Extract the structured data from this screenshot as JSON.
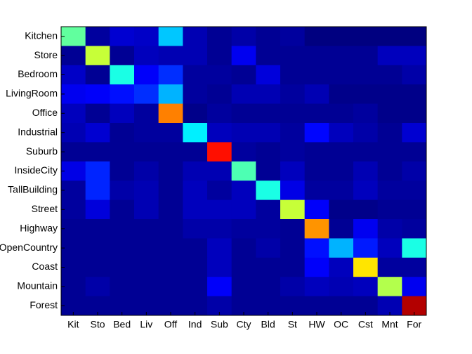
{
  "chart_data": {
    "type": "heatmap",
    "colormap": "jet",
    "zlim": [
      0,
      1
    ],
    "x_categories": [
      "Kit",
      "Sto",
      "Bed",
      "Liv",
      "Off",
      "Ind",
      "Sub",
      "Cty",
      "Bld",
      "St",
      "HW",
      "OC",
      "Cst",
      "Mnt",
      "For"
    ],
    "y_categories": [
      "Kitchen",
      "Store",
      "Bedroom",
      "LivingRoom",
      "Office",
      "Industrial",
      "Suburb",
      "InsideCity",
      "TallBuilding",
      "Street",
      "Highway",
      "OpenCountry",
      "Coast",
      "Mountain",
      "Forest"
    ],
    "values": [
      [
        0.47,
        0.03,
        0.08,
        0.07,
        0.32,
        0.05,
        0.02,
        0.04,
        0.02,
        0.03,
        0,
        0,
        0,
        0,
        0
      ],
      [
        0.02,
        0.57,
        0.02,
        0.06,
        0.05,
        0.05,
        0.02,
        0.11,
        0.02,
        0.02,
        0.02,
        0.02,
        0.02,
        0.06,
        0.06
      ],
      [
        0.07,
        0.02,
        0.4,
        0.12,
        0.17,
        0.03,
        0.03,
        0.02,
        0.09,
        0.02,
        0.02,
        0.02,
        0.02,
        0.02,
        0.04
      ],
      [
        0.11,
        0.12,
        0.14,
        0.17,
        0.3,
        0.03,
        0.02,
        0.05,
        0.05,
        0.03,
        0.05,
        0.01,
        0.01,
        0.01,
        0.01
      ],
      [
        0.06,
        0.02,
        0.06,
        0.03,
        0.75,
        0.01,
        0.03,
        0.02,
        0.02,
        0.02,
        0.02,
        0.02,
        0.03,
        0.01,
        0.01
      ],
      [
        0.05,
        0.08,
        0.02,
        0.03,
        0.03,
        0.36,
        0.06,
        0.05,
        0.05,
        0.03,
        0.13,
        0.06,
        0.04,
        0.02,
        0.08
      ],
      [
        0.02,
        0.02,
        0.02,
        0.02,
        0.02,
        0.02,
        0.86,
        0.03,
        0.02,
        0.03,
        0.02,
        0.02,
        0.02,
        0.02,
        0.02
      ],
      [
        0.1,
        0.16,
        0.02,
        0.04,
        0.02,
        0.05,
        0.05,
        0.45,
        0.02,
        0.06,
        0.02,
        0.02,
        0.05,
        0.02,
        0.04
      ],
      [
        0.03,
        0.16,
        0.04,
        0.05,
        0.02,
        0.06,
        0.03,
        0.06,
        0.4,
        0.1,
        0.03,
        0.03,
        0.06,
        0.03,
        0.03
      ],
      [
        0.03,
        0.09,
        0.02,
        0.05,
        0.02,
        0.06,
        0.06,
        0.06,
        0.03,
        0.57,
        0.12,
        0.01,
        0.01,
        0.02,
        0.02
      ],
      [
        0.02,
        0.02,
        0.02,
        0.02,
        0.02,
        0.04,
        0.04,
        0.03,
        0.03,
        0.02,
        0.73,
        0.02,
        0.11,
        0.04,
        0.03
      ],
      [
        0.02,
        0.02,
        0.02,
        0.02,
        0.02,
        0.02,
        0.06,
        0.02,
        0.04,
        0.02,
        0.14,
        0.3,
        0.15,
        0.06,
        0.4
      ],
      [
        0.02,
        0.02,
        0.02,
        0.02,
        0.02,
        0.02,
        0.06,
        0.02,
        0.02,
        0.02,
        0.12,
        0.06,
        0.65,
        0.03,
        0.03
      ],
      [
        0.02,
        0.04,
        0.02,
        0.02,
        0.02,
        0.02,
        0.12,
        0.02,
        0.02,
        0.04,
        0.06,
        0.05,
        0.06,
        0.55,
        0.11
      ],
      [
        0.02,
        0.02,
        0.02,
        0.02,
        0.02,
        0.02,
        0.04,
        0.02,
        0.02,
        0.02,
        0.02,
        0.02,
        0.02,
        0.05,
        0.95
      ]
    ]
  }
}
